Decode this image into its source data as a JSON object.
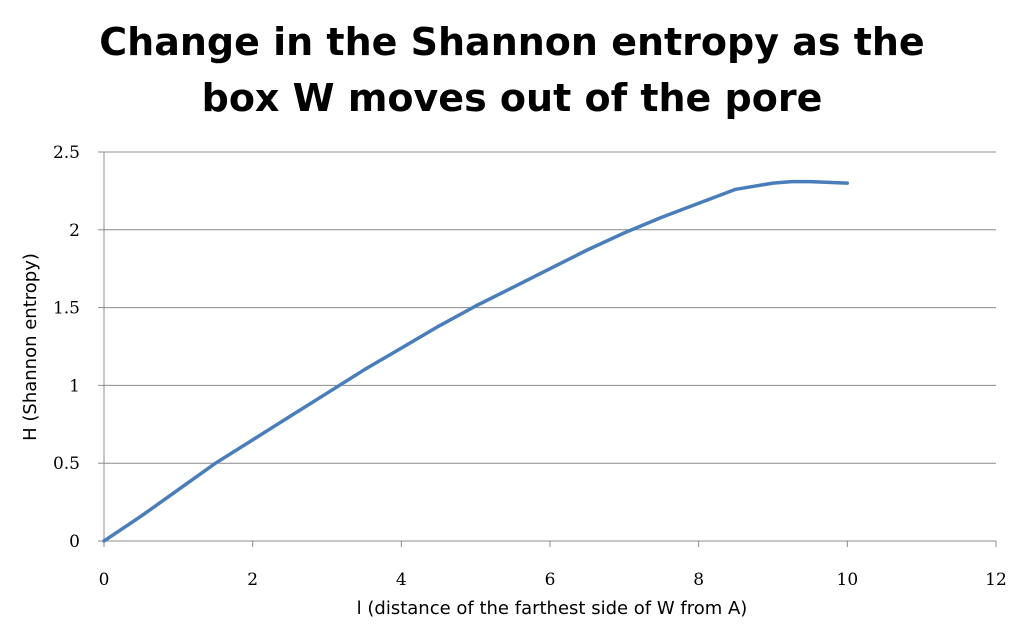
{
  "chart_data": {
    "type": "line",
    "title_lines": [
      "Change in the Shannon entropy as the",
      "box W moves out of the pore"
    ],
    "xlabel": "l (distance of the farthest side of W from A)",
    "ylabel": "H (Shannon entropy)",
    "xlim": [
      0,
      12
    ],
    "ylim": [
      0,
      2.5
    ],
    "xticks": [
      0,
      2,
      4,
      6,
      8,
      10,
      12
    ],
    "yticks": [
      0,
      0.5,
      1,
      1.5,
      2,
      2.5
    ],
    "ytick_labels": [
      "0",
      "0.5",
      "1",
      "1.5",
      "2",
      "2.5"
    ],
    "grid": "horizontal",
    "legend": "none",
    "series": [
      {
        "color": "#4a7ebb",
        "x": [
          0,
          0.5,
          1,
          1.5,
          2,
          2.5,
          3,
          3.5,
          4,
          4.5,
          5,
          5.5,
          6,
          6.5,
          7,
          7.5,
          8,
          8.5,
          9,
          9.25,
          9.5,
          10
        ],
        "y": [
          0,
          0.16,
          0.33,
          0.5,
          0.65,
          0.8,
          0.95,
          1.1,
          1.24,
          1.38,
          1.51,
          1.63,
          1.75,
          1.87,
          1.98,
          2.08,
          2.17,
          2.26,
          2.3,
          2.31,
          2.31,
          2.3
        ]
      }
    ]
  }
}
